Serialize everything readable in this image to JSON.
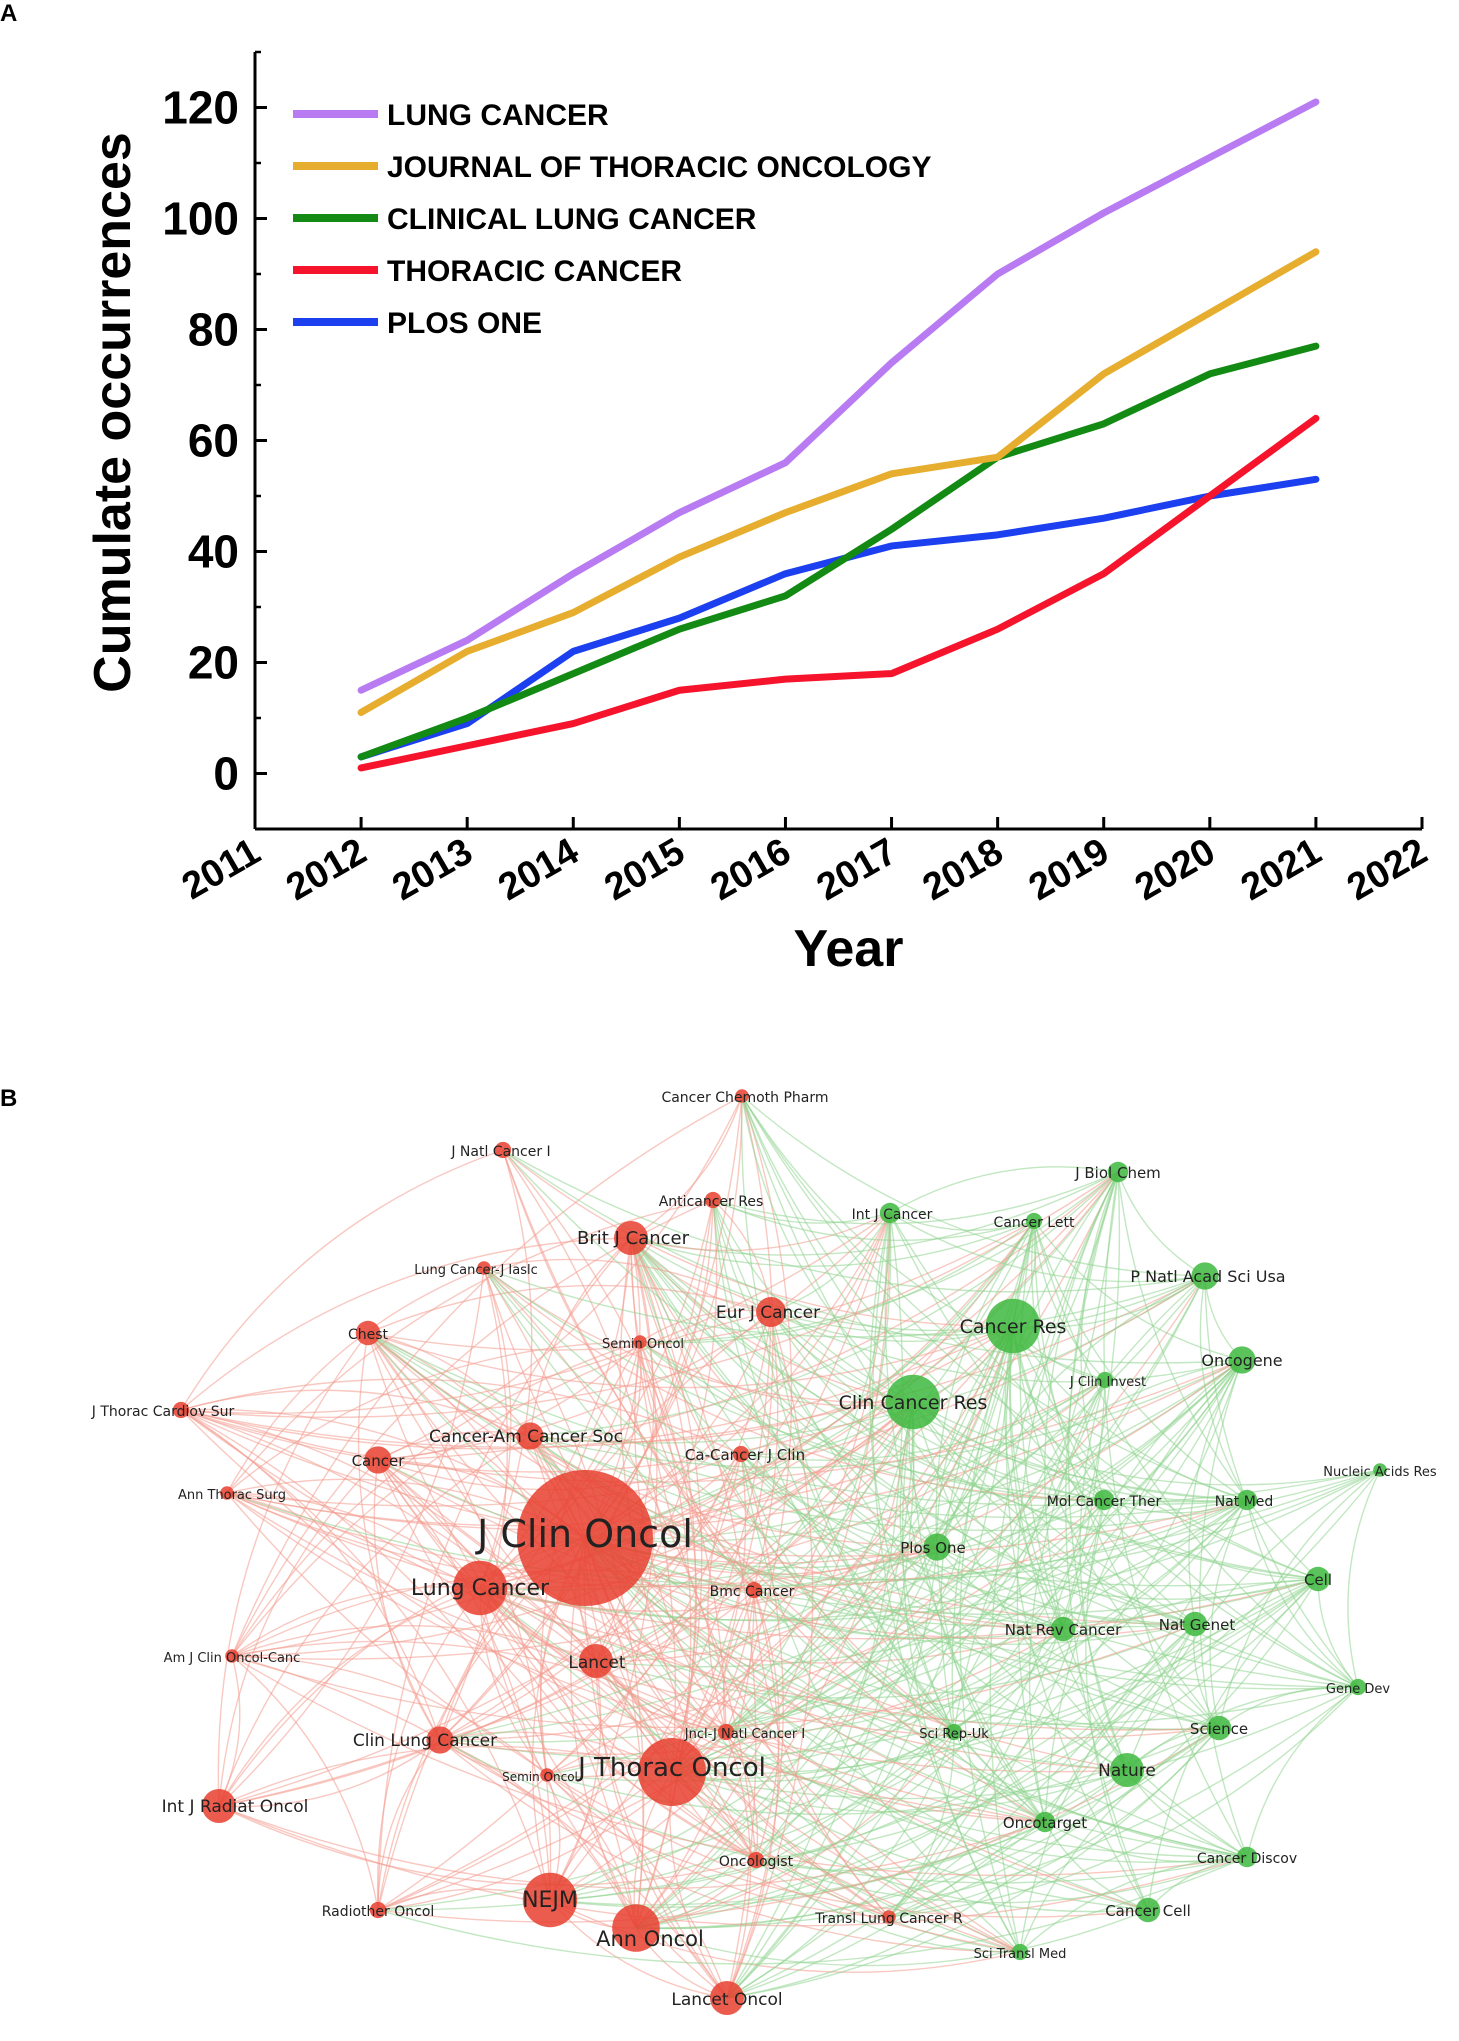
{
  "panel_a": {
    "letter": "A"
  },
  "panel_b": {
    "letter": "B"
  },
  "chart_data": [
    {
      "type": "line",
      "title": "",
      "xlabel": "Year",
      "ylabel": "Cumulate occurrences",
      "x": [
        2012,
        2013,
        2014,
        2015,
        2016,
        2017,
        2018,
        2019,
        2020,
        2021
      ],
      "xlim": [
        2011,
        2022
      ],
      "ylim": [
        -10,
        130
      ],
      "xticks": [
        "2011",
        "2012",
        "2013",
        "2014",
        "2015",
        "2016",
        "2017",
        "2018",
        "2019",
        "2020",
        "2021",
        "2022"
      ],
      "yticks": [
        "0",
        "20",
        "40",
        "60",
        "80",
        "100",
        "120"
      ],
      "grid": false,
      "legend": "top-left",
      "series": [
        {
          "name": "LUNG CANCER",
          "color": "#b87bf2",
          "values": [
            15,
            24,
            36,
            47,
            56,
            74,
            90,
            101,
            111,
            121
          ]
        },
        {
          "name": "JOURNAL OF THORACIC ONCOLOGY",
          "color": "#e6ad2e",
          "values": [
            11,
            22,
            29,
            39,
            47,
            54,
            57,
            72,
            83,
            94
          ]
        },
        {
          "name": "CLINICAL LUNG CANCER",
          "color": "#138a13",
          "values": [
            3,
            10,
            18,
            26,
            32,
            44,
            57,
            63,
            72,
            77
          ]
        },
        {
          "name": "THORACIC CANCER",
          "color": "#f5142b",
          "values": [
            1,
            5,
            9,
            15,
            17,
            18,
            26,
            36,
            50,
            64
          ]
        },
        {
          "name": "PLOS ONE",
          "color": "#1c3ff0",
          "values": [
            3,
            9,
            22,
            28,
            36,
            41,
            43,
            46,
            50,
            53
          ]
        }
      ]
    },
    {
      "type": "network",
      "title": "",
      "colors": {
        "red": "#e8402f",
        "green": "#3eb83e",
        "edge_red": "#f29a8e",
        "edge_green": "#8fd48f"
      },
      "nodes": [
        {
          "label": "J Clin Oncol",
          "cluster": "red",
          "weight": 10
        },
        {
          "label": "J Thorac Oncol",
          "cluster": "red",
          "weight": 5
        },
        {
          "label": "Lung Cancer",
          "cluster": "red",
          "weight": 4
        },
        {
          "label": "NEJM",
          "cluster": "red",
          "weight": 4
        },
        {
          "label": "Ann Oncol",
          "cluster": "red",
          "weight": 3.5
        },
        {
          "label": "Lancet",
          "cluster": "red",
          "weight": 2.5
        },
        {
          "label": "Lancet Oncol",
          "cluster": "red",
          "weight": 2.5
        },
        {
          "label": "Brit J Cancer",
          "cluster": "red",
          "weight": 2.5
        },
        {
          "label": "Eur J Cancer",
          "cluster": "red",
          "weight": 2.2
        },
        {
          "label": "Cancer-Am Cancer Soc",
          "cluster": "red",
          "weight": 2
        },
        {
          "label": "Cancer",
          "cluster": "red",
          "weight": 2
        },
        {
          "label": "Chest",
          "cluster": "red",
          "weight": 1.8
        },
        {
          "label": "Int J Radiat Oncol",
          "cluster": "red",
          "weight": 2.5
        },
        {
          "label": "Clin Lung Cancer",
          "cluster": "red",
          "weight": 2
        },
        {
          "label": "Semin Oncol",
          "cluster": "red",
          "weight": 1
        },
        {
          "label": "Semin Oncol",
          "cluster": "red",
          "weight": 1
        },
        {
          "label": "Radiother Oncol",
          "cluster": "red",
          "weight": 1.2
        },
        {
          "label": "Oncologist",
          "cluster": "red",
          "weight": 1.2
        },
        {
          "label": "Ca-Cancer J Clin",
          "cluster": "red",
          "weight": 1.2
        },
        {
          "label": "Bmc Cancer",
          "cluster": "red",
          "weight": 1.2
        },
        {
          "label": "Jncl-J Natl Cancer I",
          "cluster": "red",
          "weight": 1.2
        },
        {
          "label": "Anticancer Res",
          "cluster": "red",
          "weight": 1.2
        },
        {
          "label": "Cancer Chemoth Pharm",
          "cluster": "red",
          "weight": 1
        },
        {
          "label": "J Natl Cancer I",
          "cluster": "red",
          "weight": 1.2
        },
        {
          "label": "Lung Cancer-J Iaslc",
          "cluster": "red",
          "weight": 1
        },
        {
          "label": "J Thorac Cardiov Sur",
          "cluster": "red",
          "weight": 1.2
        },
        {
          "label": "Ann Thorac Surg",
          "cluster": "red",
          "weight": 1
        },
        {
          "label": "Am J Clin Oncol-Canc",
          "cluster": "red",
          "weight": 1
        },
        {
          "label": "Transl Lung Cancer R",
          "cluster": "red",
          "weight": 1
        },
        {
          "label": "Clin Cancer Res",
          "cluster": "green",
          "weight": 4
        },
        {
          "label": "Cancer Res",
          "cluster": "green",
          "weight": 4
        },
        {
          "label": "J Biol Chem",
          "cluster": "green",
          "weight": 1.5
        },
        {
          "label": "Int J Cancer",
          "cluster": "green",
          "weight": 1.5
        },
        {
          "label": "Cancer Lett",
          "cluster": "green",
          "weight": 1.2
        },
        {
          "label": "P Natl Acad Sci Usa",
          "cluster": "green",
          "weight": 2
        },
        {
          "label": "Oncogene",
          "cluster": "green",
          "weight": 2
        },
        {
          "label": "J Clin Invest",
          "cluster": "green",
          "weight": 1.2
        },
        {
          "label": "Nucleic Acids Res",
          "cluster": "green",
          "weight": 1
        },
        {
          "label": "Mol Cancer Ther",
          "cluster": "green",
          "weight": 1.5
        },
        {
          "label": "Nat Med",
          "cluster": "green",
          "weight": 1.5
        },
        {
          "label": "Plos One",
          "cluster": "green",
          "weight": 2
        },
        {
          "label": "Cell",
          "cluster": "green",
          "weight": 1.8
        },
        {
          "label": "Nat Rev Cancer",
          "cluster": "green",
          "weight": 1.8
        },
        {
          "label": "Nat Genet",
          "cluster": "green",
          "weight": 1.8
        },
        {
          "label": "Gene Dev",
          "cluster": "green",
          "weight": 1.2
        },
        {
          "label": "Sci Rep-Uk",
          "cluster": "green",
          "weight": 1.2
        },
        {
          "label": "Science",
          "cluster": "green",
          "weight": 1.8
        },
        {
          "label": "Nature",
          "cluster": "green",
          "weight": 2.5
        },
        {
          "label": "Oncotarget",
          "cluster": "green",
          "weight": 1.5
        },
        {
          "label": "Cancer Discov",
          "cluster": "green",
          "weight": 1.5
        },
        {
          "label": "Cancer Cell",
          "cluster": "green",
          "weight": 1.8
        },
        {
          "label": "Sci Transl Med",
          "cluster": "green",
          "weight": 1.2
        }
      ]
    }
  ]
}
